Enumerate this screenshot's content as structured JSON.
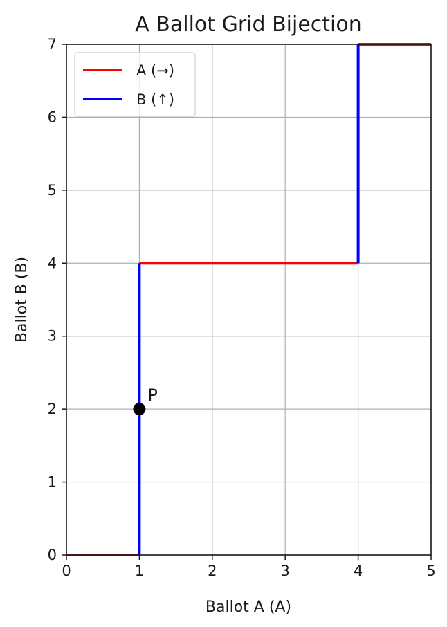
{
  "chart_data": {
    "type": "line",
    "title": "A Ballot Grid Bijection",
    "xlabel": "Ballot A (A)",
    "ylabel": "Ballot B (B)",
    "xlim": [
      0,
      5
    ],
    "ylim": [
      0,
      7
    ],
    "xticks": [
      0,
      1,
      2,
      3,
      4,
      5
    ],
    "yticks": [
      0,
      1,
      2,
      3,
      4,
      5,
      6,
      7
    ],
    "grid": true,
    "legend_placement": "upper-left",
    "series": [
      {
        "name": "A (→)",
        "color": "#ff0000",
        "segments": [
          {
            "x": [
              0,
              1
            ],
            "y": [
              0,
              0
            ]
          },
          {
            "x": [
              1,
              4
            ],
            "y": [
              4,
              4
            ]
          },
          {
            "x": [
              4,
              5
            ],
            "y": [
              7,
              7
            ]
          }
        ]
      },
      {
        "name": "B (↑)",
        "color": "#0000ff",
        "segments": [
          {
            "x": [
              1,
              1
            ],
            "y": [
              0,
              4
            ]
          },
          {
            "x": [
              4,
              4
            ],
            "y": [
              4,
              7
            ]
          }
        ]
      }
    ],
    "annotations": [
      {
        "label": "P",
        "x": 1,
        "y": 2,
        "marker_color": "#000000"
      }
    ]
  }
}
